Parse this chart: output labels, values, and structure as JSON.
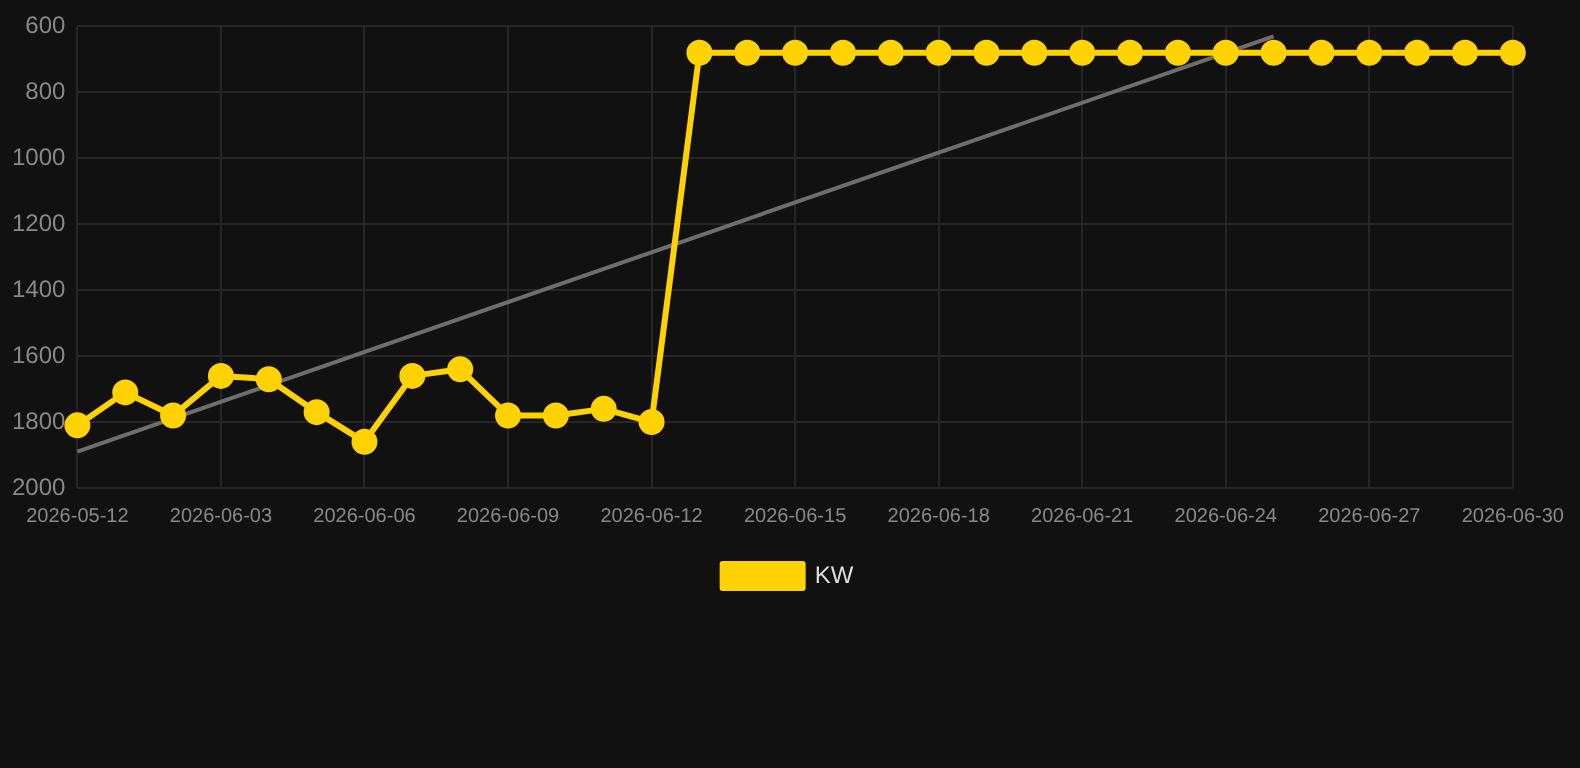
{
  "chart_data": {
    "type": "line",
    "categories": [
      "2026-05-12",
      null,
      null,
      "2026-06-03",
      null,
      null,
      "2026-06-06",
      null,
      null,
      "2026-06-09",
      null,
      null,
      "2026-06-12",
      null,
      null,
      "2026-06-15",
      null,
      null,
      "2026-06-18",
      null,
      null,
      "2026-06-21",
      null,
      null,
      "2026-06-24",
      null,
      null,
      "2026-06-27",
      null,
      null,
      "2026-06-30"
    ],
    "series": [
      {
        "name": "KW",
        "color": "#ffd200",
        "values": [
          1810,
          1710,
          1780,
          1660,
          1670,
          1770,
          1860,
          1660,
          1640,
          1780,
          1780,
          1760,
          1800,
          680,
          680,
          680,
          680,
          680,
          680,
          680,
          680,
          680,
          680,
          680,
          680,
          680,
          680,
          680,
          680,
          680,
          680
        ]
      },
      {
        "color": "#6e6e6e",
        "marker": "none",
        "values": [
          1890,
          null,
          null,
          null,
          null,
          null,
          null,
          null,
          null,
          null,
          null,
          null,
          null,
          null,
          null,
          null,
          null,
          null,
          null,
          null,
          null,
          null,
          null,
          null,
          null,
          630,
          null,
          null,
          null,
          null,
          null
        ]
      }
    ],
    "ylim": [
      2000,
      600
    ],
    "yticks": [
      600,
      800,
      1000,
      1200,
      1400,
      1600,
      1800,
      2000
    ],
    "grid": true,
    "legend": "bottom",
    "marker": "circle"
  }
}
